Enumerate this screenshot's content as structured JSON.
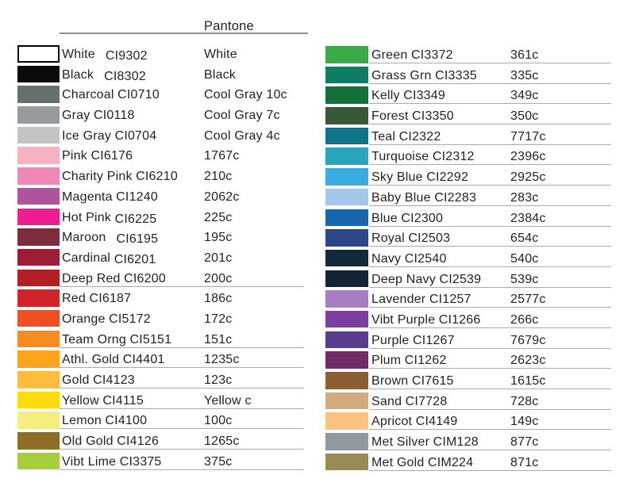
{
  "header": {
    "pantone_label": "Pantone"
  },
  "chart_data": {
    "type": "table",
    "title": "Color reference chart: color name + CI code vs Pantone value",
    "columns": [
      "swatch",
      "name",
      "ci_code",
      "pantone"
    ],
    "left_rows": [
      {
        "name": "White",
        "code": "CI9302",
        "pantone": "White",
        "swatch": "#ffffff",
        "underline": false,
        "border": true,
        "gap": true,
        "drop": true
      },
      {
        "name": "Black",
        "code": "CI8302",
        "pantone": "Black",
        "swatch": "#0b0b0b",
        "underline": false,
        "gap": true,
        "drop": true
      },
      {
        "name": "Charcoal",
        "code": "CI0710",
        "pantone": "Cool Gray 10c",
        "swatch": "#66706e",
        "underline": false
      },
      {
        "name": "Gray",
        "code": "CI0118",
        "pantone": "Cool Gray 7c",
        "swatch": "#979b9d",
        "underline": false
      },
      {
        "name": "Ice Gray",
        "code": "CI0704",
        "pantone": "Cool Gray 4c",
        "swatch": "#c2c4c6",
        "underline": false
      },
      {
        "name": "Pink",
        "code": "CI6176",
        "pantone": "1767c",
        "swatch": "#f6b1c3",
        "underline": false
      },
      {
        "name": "Charity Pink",
        "code": "CI6210",
        "pantone": "210c",
        "swatch": "#ef87b7",
        "underline": false
      },
      {
        "name": "Magenta",
        "code": "CI1240",
        "pantone": "2062c",
        "swatch": "#b0539e",
        "underline": false
      },
      {
        "name": "Hot Pink",
        "code": "CI6225",
        "pantone": "225c",
        "swatch": "#ee1e90",
        "underline": false,
        "drop": true
      },
      {
        "name": "Maroon",
        "code": "CI6195",
        "pantone": "195c",
        "swatch": "#7d2c3e",
        "underline": false,
        "gap": true,
        "drop": true
      },
      {
        "name": "Cardinal",
        "code": "CI6201",
        "pantone": "201c",
        "swatch": "#9c1d36",
        "underline": false,
        "drop": true
      },
      {
        "name": "Deep Red",
        "code": "CI6200",
        "pantone": "200c",
        "swatch": "#b12025",
        "underline": true
      },
      {
        "name": "Red",
        "code": "CI6187",
        "pantone": "186c",
        "swatch": "#d2232a",
        "underline": false
      },
      {
        "name": "Orange",
        "code": "CI5172",
        "pantone": "172c",
        "swatch": "#f04e23",
        "underline": false
      },
      {
        "name": "Team Orng",
        "code": "CI5151",
        "pantone": "151c",
        "swatch": "#f68b21",
        "underline": true
      },
      {
        "name": "Athl. Gold",
        "code": "CI4401",
        "pantone": "1235c",
        "swatch": "#faa51d",
        "underline": true
      },
      {
        "name": "Gold",
        "code": "CI4123",
        "pantone": "123c",
        "swatch": "#fcbd3c",
        "underline": true
      },
      {
        "name": "Yellow",
        "code": "CI4115",
        "pantone": "Yellow c",
        "swatch": "#fddb0c",
        "underline": true
      },
      {
        "name": "Lemon",
        "code": "CI4100",
        "pantone": "100c",
        "swatch": "#f4ef7c",
        "underline": true
      },
      {
        "name": "Old Gold",
        "code": "CI4126",
        "pantone": "1265c",
        "swatch": "#8d6e27",
        "underline": true
      },
      {
        "name": "Vibt Lime",
        "code": "CI3375",
        "pantone": "375c",
        "swatch": "#a6ce3a",
        "underline": true
      }
    ],
    "right_rows": [
      {
        "name": "Green",
        "code": "CI3372",
        "pantone": "361c",
        "swatch": "#3baa48",
        "underline": true
      },
      {
        "name": "Grass Grn",
        "code": "CI3335",
        "pantone": "335c",
        "swatch": "#0f7d61",
        "underline": true
      },
      {
        "name": "Kelly",
        "code": "CI3349",
        "pantone": "349c",
        "swatch": "#13703a",
        "underline": true
      },
      {
        "name": "Forest",
        "code": "CI3350",
        "pantone": "350c",
        "swatch": "#375937",
        "underline": true
      },
      {
        "name": "Teal",
        "code": "CI2322",
        "pantone": "7717c",
        "swatch": "#0e7487",
        "underline": true
      },
      {
        "name": "Turquoise",
        "code": "CI2312",
        "pantone": "2396c",
        "swatch": "#28a5bb",
        "underline": true
      },
      {
        "name": "Sky Blue",
        "code": "CI2292",
        "pantone": "2925c",
        "swatch": "#39ace1",
        "underline": true
      },
      {
        "name": "Baby Blue",
        "code": "CI2283",
        "pantone": "283c",
        "swatch": "#a4c6e9",
        "underline": true
      },
      {
        "name": "Blue",
        "code": "CI2300",
        "pantone": "2384c",
        "swatch": "#1966b0",
        "underline": true
      },
      {
        "name": "Royal",
        "code": "CI2503",
        "pantone": "654c",
        "swatch": "#2b4788",
        "underline": true
      },
      {
        "name": "Navy",
        "code": "CI2540",
        "pantone": "540c",
        "swatch": "#15293d",
        "underline": true
      },
      {
        "name": "Deep Navy",
        "code": "CI2539",
        "pantone": "539c",
        "swatch": "#132434",
        "underline": true
      },
      {
        "name": "Lavender",
        "code": "CI1257",
        "pantone": "2577c",
        "swatch": "#a97dc3",
        "underline": true
      },
      {
        "name": "Vibt Purple",
        "code": "CI1266",
        "pantone": "266c",
        "swatch": "#7c3ea0",
        "underline": true
      },
      {
        "name": "Purple",
        "code": "CI1267",
        "pantone": "7679c",
        "swatch": "#573c90",
        "underline": true
      },
      {
        "name": "Plum",
        "code": "CI1262",
        "pantone": "2623c",
        "swatch": "#712b67",
        "underline": true
      },
      {
        "name": "Brown",
        "code": "CI7615",
        "pantone": "1615c",
        "swatch": "#8b5e33",
        "underline": true
      },
      {
        "name": "Sand",
        "code": "CI7728",
        "pantone": "728c",
        "swatch": "#d3aa7c",
        "underline": true
      },
      {
        "name": "Apricot",
        "code": "CI4149",
        "pantone": "149c",
        "swatch": "#fcc281",
        "underline": true
      },
      {
        "name": "Met Silver",
        "code": "CIM128",
        "pantone": "877c",
        "swatch": "#91989f",
        "underline": true
      },
      {
        "name": "Met Gold",
        "code": "CIM224",
        "pantone": "871c",
        "swatch": "#988b55",
        "underline": true
      }
    ],
    "colors": {
      "text": "#231f20",
      "row_divider": "#a8aaad",
      "header_rule": "#8b8d90",
      "background": "#ffffff"
    }
  }
}
